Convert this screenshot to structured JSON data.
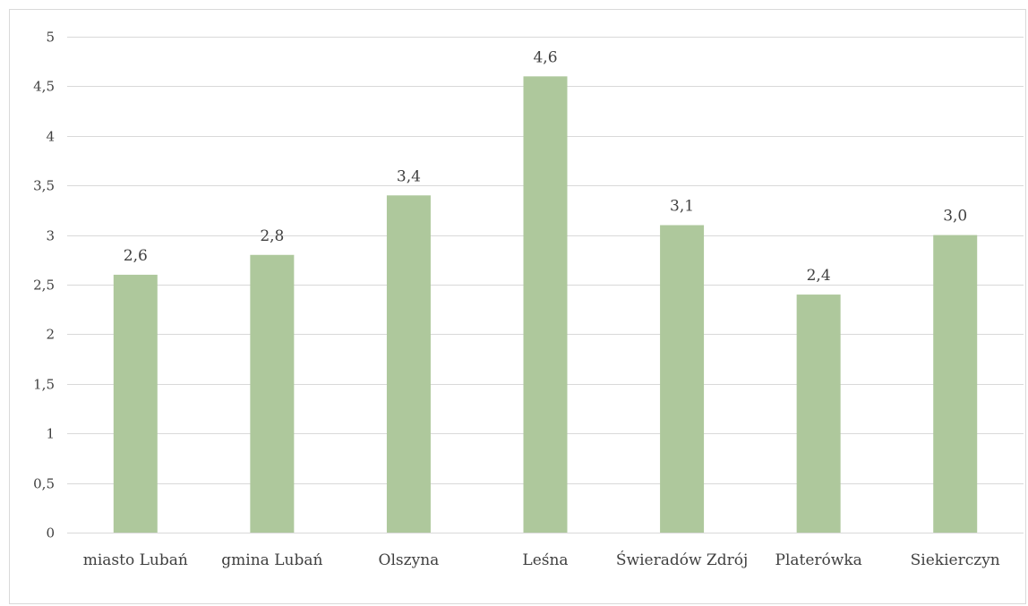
{
  "chart_data": {
    "type": "bar",
    "categories": [
      "miasto Lubań",
      "gmina Lubań",
      "Olszyna",
      "Leśna",
      "Świeradów Zdrój",
      "Platerówka",
      "Siekierczyn"
    ],
    "values": [
      2.6,
      2.8,
      3.4,
      4.6,
      3.1,
      2.4,
      3.0
    ],
    "data_labels": [
      "2,6",
      "2,8",
      "3,4",
      "4,6",
      "3,1",
      "2,4",
      "3,0"
    ],
    "y_ticks": [
      {
        "value": 0,
        "label": "0"
      },
      {
        "value": 0.5,
        "label": "0,5"
      },
      {
        "value": 1,
        "label": "1"
      },
      {
        "value": 1.5,
        "label": "1,5"
      },
      {
        "value": 2,
        "label": "2"
      },
      {
        "value": 2.5,
        "label": "2,5"
      },
      {
        "value": 3,
        "label": "3"
      },
      {
        "value": 3.5,
        "label": "3,5"
      },
      {
        "value": 4,
        "label": "4"
      },
      {
        "value": 4.5,
        "label": "4,5"
      },
      {
        "value": 5,
        "label": "5"
      }
    ],
    "ylim": [
      0,
      5
    ],
    "grid": true,
    "legend": "none",
    "bar_color": "#aec89c",
    "grid_color": "#d9d9d9",
    "text_color": "#404040"
  }
}
